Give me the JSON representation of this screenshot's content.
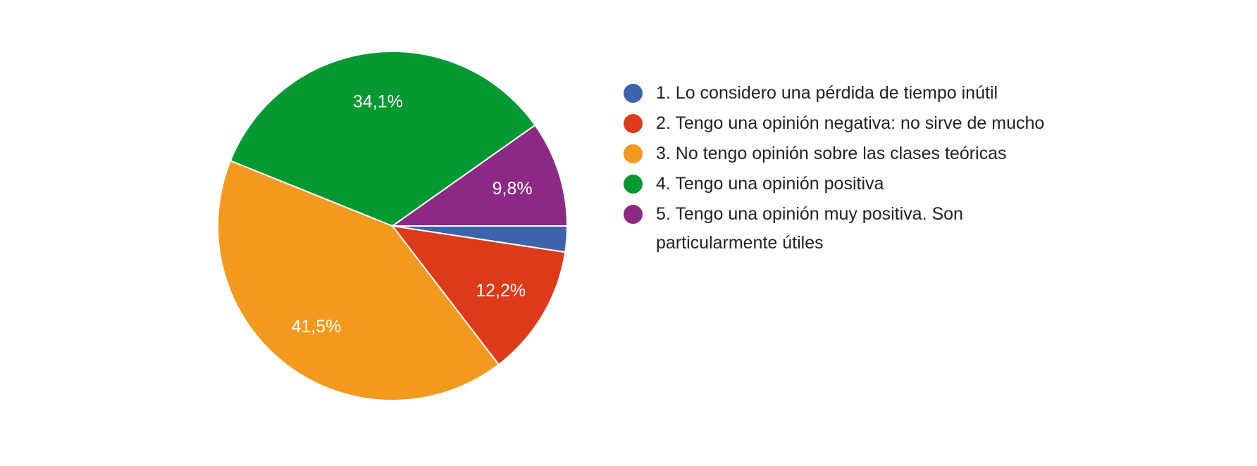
{
  "chart_data": {
    "type": "pie",
    "start": "3 o'clock, clockwise",
    "slices": [
      {
        "label": "1. Lo considero una pérdida de tiempo inútil",
        "value": 2.4,
        "display": "",
        "color": "#3b64ad"
      },
      {
        "label": "2. Tengo una opinión negativa: no sirve de mucho",
        "value": 12.2,
        "display": "12,2%",
        "color": "#dc3a19"
      },
      {
        "label": "3. No tengo opinión sobre las clases teóricas",
        "value": 41.5,
        "display": "41,5%",
        "color": "#f3991d"
      },
      {
        "label": "4. Tengo una opinión positiva",
        "value": 34.1,
        "display": "34,1%",
        "color": "#069831"
      },
      {
        "label": "5. Tengo una opinión muy positiva. Son particularmente útiles",
        "value": 9.8,
        "display": "9,8%",
        "color": "#8c2984"
      }
    ],
    "legend_position": "right"
  }
}
